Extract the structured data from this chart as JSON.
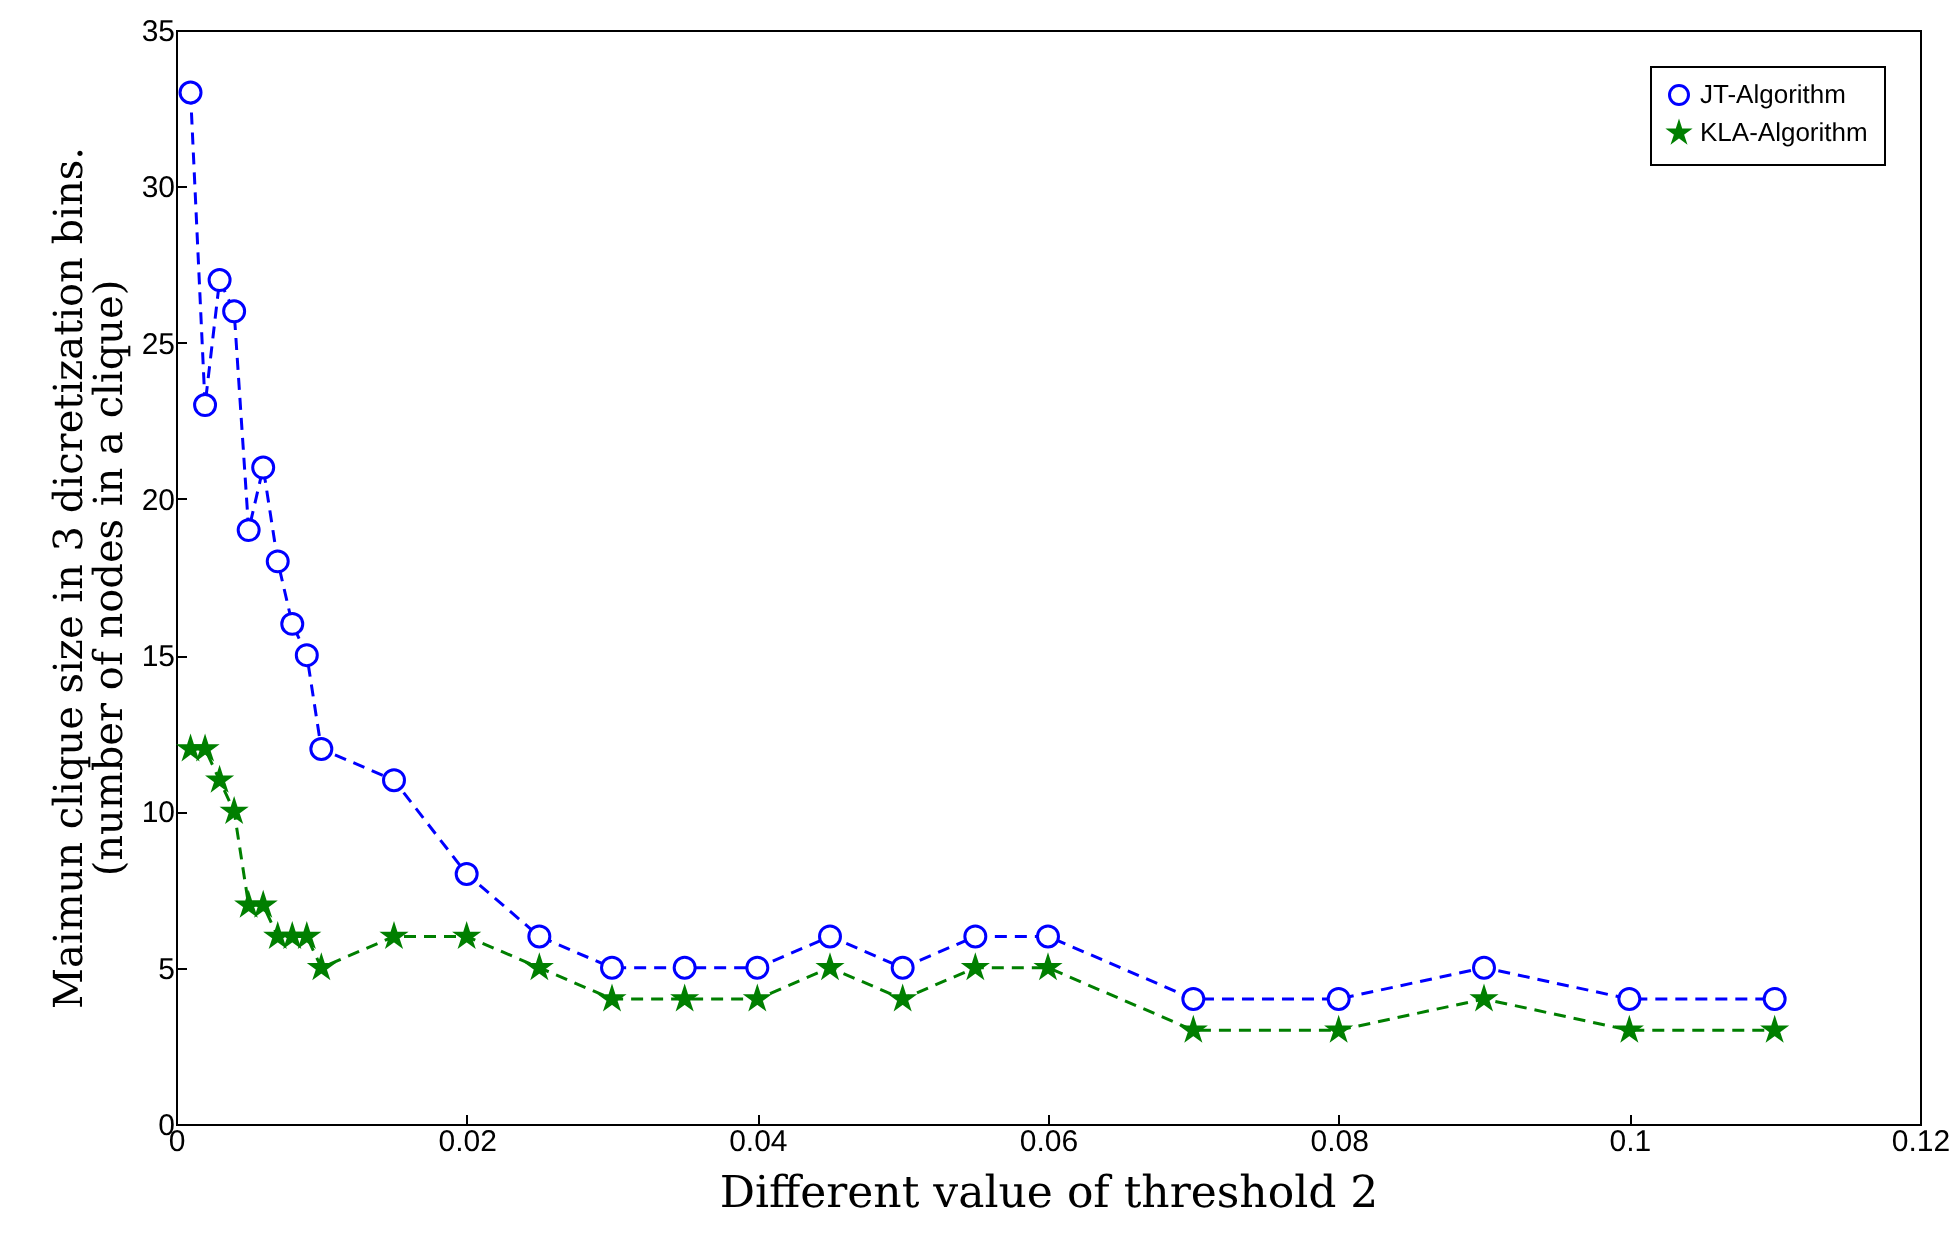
{
  "chart_data": {
    "type": "line",
    "xlabel": "Different value of threshold 2",
    "ylabel": "Maimun clique size in 3 dicretization bins.\n(number of nodes in a clique)",
    "x": [
      0.001,
      0.002,
      0.003,
      0.004,
      0.005,
      0.006,
      0.007,
      0.008,
      0.009,
      0.01,
      0.015,
      0.02,
      0.025,
      0.03,
      0.035,
      0.04,
      0.045,
      0.05,
      0.055,
      0.06,
      0.07,
      0.08,
      0.09,
      0.1,
      0.11
    ],
    "series": [
      {
        "name": "JT-Algorithm",
        "color": "#0000ff",
        "marker": "circle",
        "values": [
          33,
          23,
          27,
          26,
          19,
          21,
          18,
          16,
          15,
          12,
          11,
          8,
          6,
          5,
          5,
          5,
          6,
          5,
          6,
          6,
          4,
          4,
          5,
          4,
          4
        ]
      },
      {
        "name": "KLA-Algorithm",
        "color": "#007f00",
        "marker": "star",
        "values": [
          12,
          12,
          11,
          10,
          7,
          7,
          6,
          6,
          6,
          5,
          6,
          6,
          5,
          4,
          4,
          4,
          5,
          4,
          5,
          5,
          3,
          3,
          4,
          3,
          3
        ]
      }
    ],
    "xlim": [
      0,
      0.12
    ],
    "xticks": [
      0,
      0.02,
      0.04,
      0.06,
      0.08,
      0.1,
      0.12
    ],
    "ylim": [
      0,
      35
    ],
    "yticks": [
      0,
      5,
      10,
      15,
      20,
      25,
      30,
      35
    ],
    "line_style": "dashed",
    "legend": "top right",
    "grid": false
  }
}
